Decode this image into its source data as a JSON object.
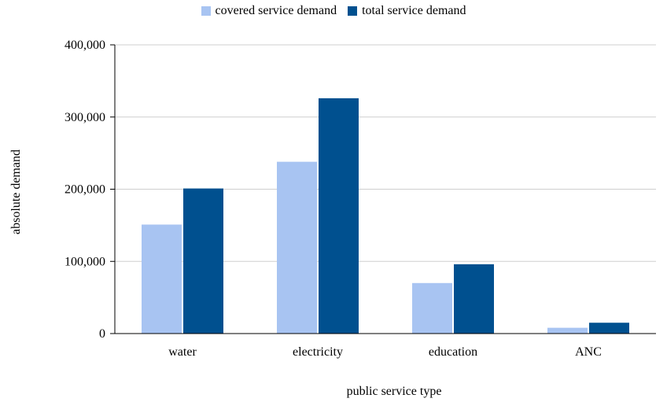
{
  "chart_data": {
    "type": "bar",
    "categories": [
      "water",
      "electricity",
      "education",
      "ANC"
    ],
    "series": [
      {
        "name": "covered service demand",
        "color": "#a8c4f2",
        "values": [
          151000,
          238000,
          70000,
          8000
        ]
      },
      {
        "name": "total service demand",
        "color": "#00508f",
        "values": [
          201000,
          326000,
          96000,
          15000
        ]
      }
    ],
    "xlabel": "public service type",
    "ylabel": "absolute demand",
    "ylim": [
      0,
      400000
    ],
    "yticks": [
      0,
      100000,
      200000,
      300000,
      400000
    ],
    "ytick_labels": [
      "0",
      "100,000",
      "200,000",
      "300,000",
      "400,000"
    ],
    "grid": true,
    "legend_position": "top-center"
  }
}
